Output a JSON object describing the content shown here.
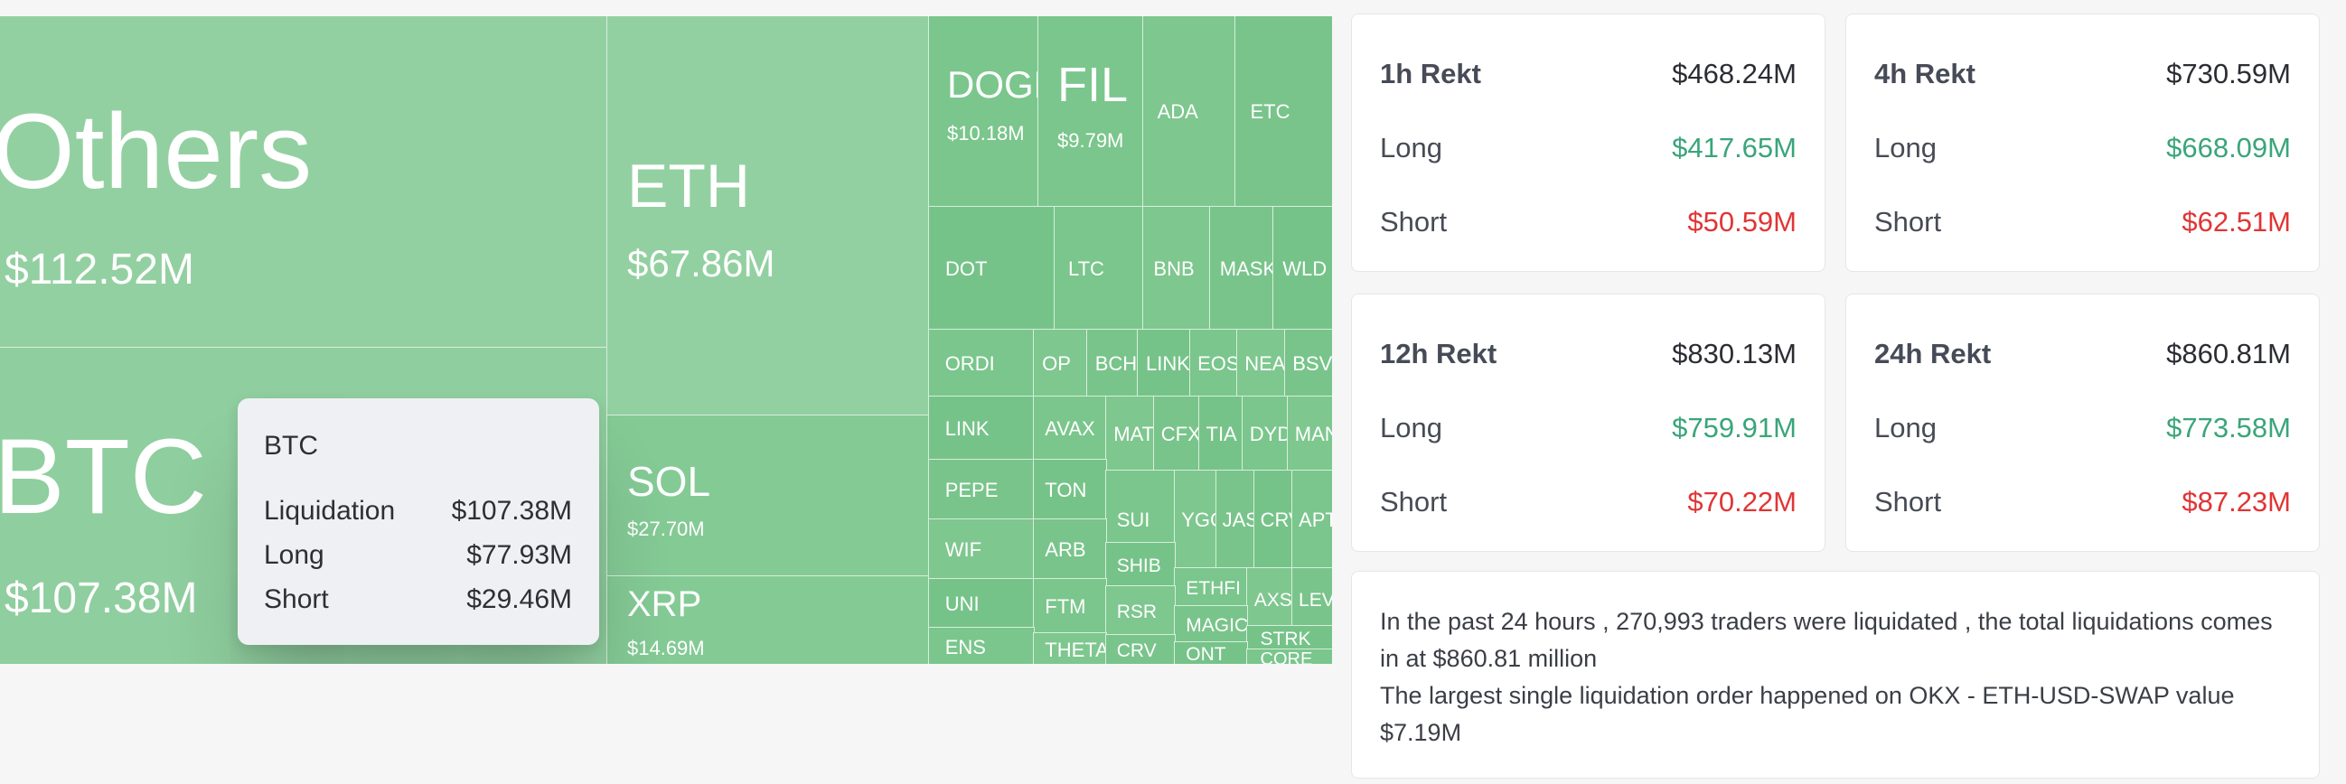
{
  "treemap": {
    "others": {
      "label": "Others",
      "value": "$112.52M"
    },
    "btc": {
      "label": "BTC",
      "value": "$107.38M"
    },
    "eth": {
      "label": "ETH",
      "value": "$67.86M"
    },
    "sol": {
      "label": "SOL",
      "value": "$27.70M"
    },
    "xrp": {
      "label": "XRP",
      "value": "$14.69M"
    },
    "doge": {
      "label": "DOGE",
      "value": "$10.18M"
    },
    "fil": {
      "label": "FIL",
      "value": "$9.79M"
    },
    "small": [
      "ADA",
      "ETC",
      "DOT",
      "LTC",
      "BNB",
      "MASK",
      "WLD",
      "ORDI",
      "OP",
      "BCH",
      "LINK",
      "EOS",
      "NEAR",
      "BSV",
      "LINK",
      "AVAX",
      "MATIC",
      "CFX",
      "TIA",
      "DYDX",
      "MANA",
      "PEPE",
      "TON",
      "SUI",
      "YGG",
      "JASMY",
      "CRV",
      "APT",
      "WIF",
      "ARB",
      "SHIB",
      "ETHFI",
      "AXS",
      "LEVER",
      "UNI",
      "FTM",
      "RSR",
      "MAGIC",
      "STRK",
      "ENS",
      "THETA",
      "CRV",
      "ONT",
      "CORE"
    ]
  },
  "tooltip": {
    "title": "BTC",
    "rows": [
      {
        "label": "Liquidation",
        "value": "$107.38M"
      },
      {
        "label": "Long",
        "value": "$77.93M"
      },
      {
        "label": "Short",
        "value": "$29.46M"
      }
    ]
  },
  "cards": [
    {
      "title": "1h Rekt",
      "total": "$468.24M",
      "long_label": "Long",
      "long": "$417.65M",
      "short_label": "Short",
      "short": "$50.59M"
    },
    {
      "title": "4h Rekt",
      "total": "$730.59M",
      "long_label": "Long",
      "long": "$668.09M",
      "short_label": "Short",
      "short": "$62.51M"
    },
    {
      "title": "12h Rekt",
      "total": "$830.13M",
      "long_label": "Long",
      "long": "$759.91M",
      "short_label": "Short",
      "short": "$70.22M"
    },
    {
      "title": "24h Rekt",
      "total": "$860.81M",
      "long_label": "Long",
      "long": "$773.58M",
      "short_label": "Short",
      "short": "$87.23M"
    }
  ],
  "summary": {
    "line1": "In the past 24 hours , 270,993 traders were liquidated , the total liquidations comes in at $860.81 million",
    "line2": "The largest single liquidation order happened on OKX - ETH-USD-SWAP value $7.19M"
  },
  "colors": {
    "treemap_light": "#93d0a1",
    "treemap_dark": "#79c48b",
    "long": "#3aa57a",
    "short": "#e03535"
  }
}
